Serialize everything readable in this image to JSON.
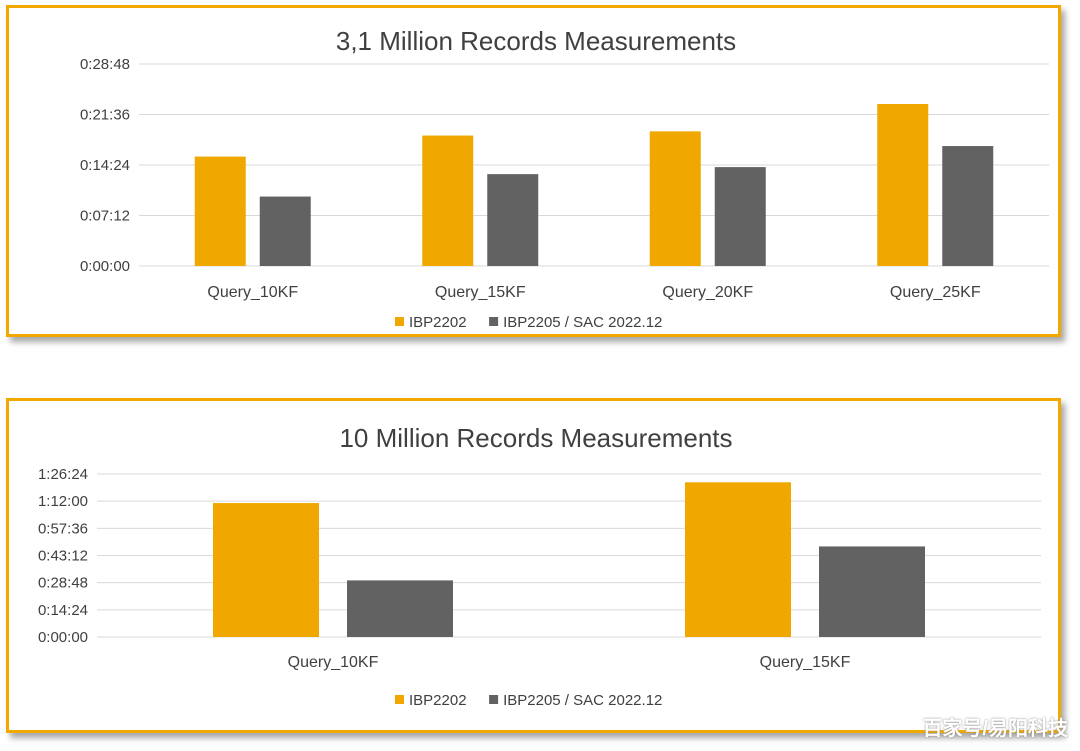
{
  "chart_data": [
    {
      "type": "bar",
      "title": "3,1 Million Records Measurements",
      "categories": [
        "Query_10KF",
        "Query_15KF",
        "Query_20KF",
        "Query_25KF"
      ],
      "series": [
        {
          "name": "IBP2202",
          "values_seconds": [
            936,
            1116,
            1152,
            1386
          ],
          "color": "#f0a800"
        },
        {
          "name": "IBP2205 / SAC 2022.12",
          "values_seconds": [
            594,
            786,
            846,
            1026
          ],
          "color": "#626262"
        }
      ],
      "y_ticks": [
        "0:00:00",
        "0:07:12",
        "0:14:24",
        "0:21:36",
        "0:28:48"
      ],
      "ylim_seconds": [
        0,
        1728
      ],
      "grid": true,
      "legend": "bottom"
    },
    {
      "type": "bar",
      "title": "10 Million Records Measurements",
      "categories": [
        "Query_10KF",
        "Query_15KF"
      ],
      "series": [
        {
          "name": "IBP2202",
          "values_seconds": [
            4260,
            4920
          ],
          "color": "#f0a800"
        },
        {
          "name": "IBP2205 / SAC 2022.12",
          "values_seconds": [
            1800,
            2880
          ],
          "color": "#626262"
        }
      ],
      "y_ticks": [
        "0:00:00",
        "0:14:24",
        "0:28:48",
        "0:43:12",
        "0:57:36",
        "1:12:00",
        "1:26:24"
      ],
      "ylim_seconds": [
        0,
        5184
      ],
      "grid": true,
      "legend": "bottom"
    }
  ],
  "watermark": "百家号/易阳科技"
}
